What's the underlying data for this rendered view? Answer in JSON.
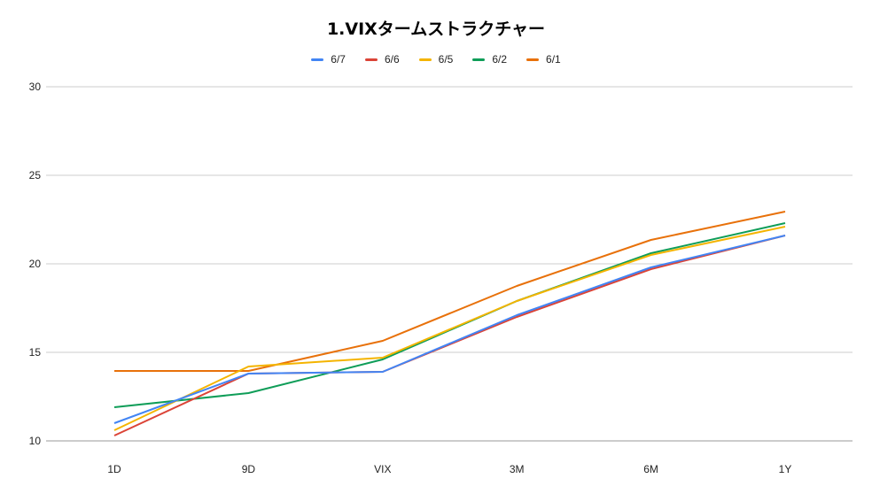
{
  "chart_data": {
    "type": "line",
    "title": "1.VIXタームストラクチャー",
    "xlabel": "",
    "ylabel": "",
    "categories": [
      "1D",
      "9D",
      "VIX",
      "3M",
      "6M",
      "1Y"
    ],
    "ylim": [
      10,
      30
    ],
    "yticks": [
      10,
      15,
      20,
      25,
      30
    ],
    "grid": true,
    "legend_position": "top-center",
    "series": [
      {
        "name": "6/7",
        "color": "#4285F4",
        "values": [
          11.0,
          13.8,
          13.9,
          17.1,
          19.8,
          21.6
        ]
      },
      {
        "name": "6/6",
        "color": "#DB4437",
        "values": [
          10.3,
          13.8,
          13.9,
          17.0,
          19.7,
          21.6
        ]
      },
      {
        "name": "6/5",
        "color": "#F4B400",
        "values": [
          10.6,
          14.2,
          14.7,
          17.9,
          20.5,
          22.1
        ]
      },
      {
        "name": "6/2",
        "color": "#0F9D58",
        "values": [
          11.9,
          12.7,
          14.6,
          17.9,
          20.6,
          22.3
        ]
      },
      {
        "name": "6/1",
        "color": "#E8710A",
        "values": [
          13.95,
          13.95,
          15.65,
          18.75,
          21.35,
          22.95
        ]
      }
    ]
  }
}
